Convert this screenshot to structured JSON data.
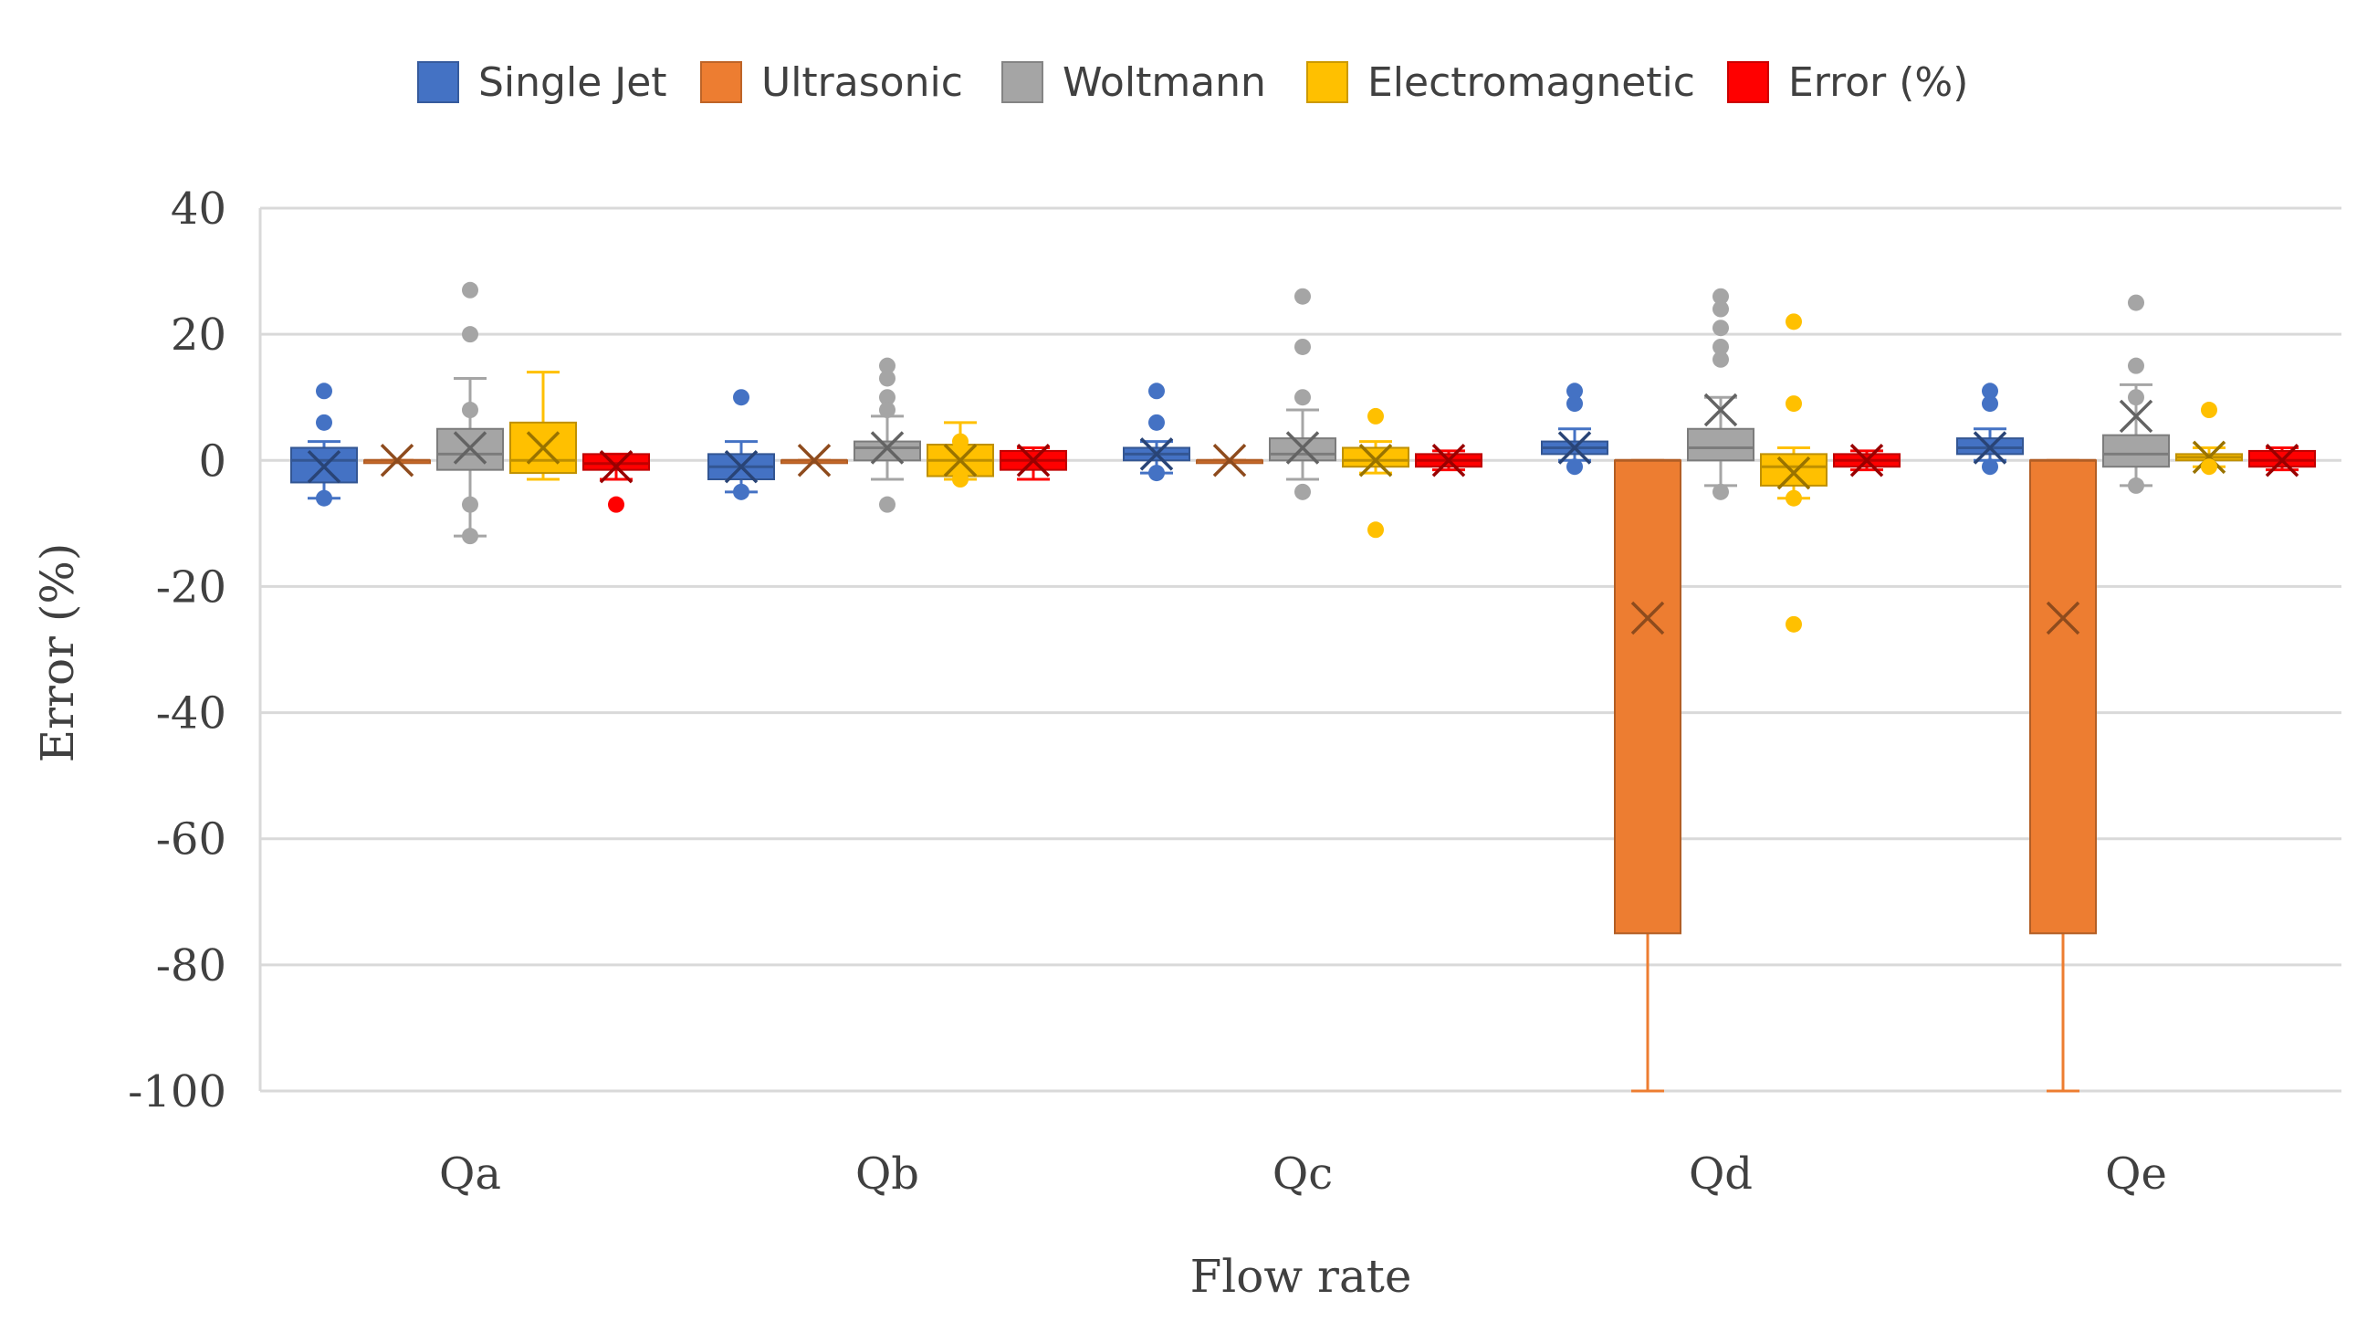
{
  "chart_data": {
    "type": "box",
    "title": "",
    "xlabel": "Flow rate",
    "ylabel": "Error (%)",
    "ylim": [
      -100,
      40
    ],
    "yticks": [
      40,
      20,
      0,
      -20,
      -40,
      -60,
      -80,
      -100
    ],
    "ytick_labels": [
      "40",
      "20",
      "0",
      "-20",
      "-40",
      "-60",
      "-80",
      "-100"
    ],
    "grid": true,
    "legend_position": "top",
    "categories": [
      "Qa",
      "Qb",
      "Qc",
      "Qd",
      "Qe"
    ],
    "series": [
      {
        "name": "Single Jet",
        "color": "#4472C4",
        "boxes": [
          {
            "q1": -3.5,
            "median": 0,
            "q3": 2,
            "whisker_low": -6,
            "whisker_high": 3,
            "mean": -1,
            "outliers": [
              11,
              6,
              -6
            ]
          },
          {
            "q1": -3,
            "median": -1,
            "q3": 1,
            "whisker_low": -5,
            "whisker_high": 3,
            "mean": -1,
            "outliers": [
              10,
              -5
            ]
          },
          {
            "q1": 0,
            "median": 1,
            "q3": 2,
            "whisker_low": -2,
            "whisker_high": 3,
            "mean": 1,
            "outliers": [
              11,
              6,
              -2
            ]
          },
          {
            "q1": 1,
            "median": 2,
            "q3": 3,
            "whisker_low": 0,
            "whisker_high": 5,
            "mean": 2,
            "outliers": [
              11,
              9,
              -1
            ]
          },
          {
            "q1": 1,
            "median": 2,
            "q3": 3.5,
            "whisker_low": 0,
            "whisker_high": 5,
            "mean": 2,
            "outliers": [
              11,
              9,
              -1
            ]
          }
        ]
      },
      {
        "name": "Ultrasonic",
        "color": "#ED7D31",
        "boxes": [
          {
            "q1": 0,
            "median": 0,
            "q3": 0,
            "whisker_low": 0,
            "whisker_high": 0,
            "mean": 0,
            "outliers": []
          },
          {
            "q1": 0,
            "median": 0,
            "q3": 0,
            "whisker_low": 0,
            "whisker_high": 0,
            "mean": 0,
            "outliers": []
          },
          {
            "q1": 0,
            "median": 0,
            "q3": 0,
            "whisker_low": 0,
            "whisker_high": 0,
            "mean": 0,
            "outliers": []
          },
          {
            "q1": -75,
            "median": 0,
            "q3": 0,
            "whisker_low": -100,
            "whisker_high": 0,
            "mean": -25,
            "outliers": []
          },
          {
            "q1": -75,
            "median": 0,
            "q3": 0,
            "whisker_low": -100,
            "whisker_high": 0,
            "mean": -25,
            "outliers": []
          }
        ]
      },
      {
        "name": "Woltmann",
        "color": "#A5A5A5",
        "boxes": [
          {
            "q1": -1.5,
            "median": 1,
            "q3": 5,
            "whisker_low": -12,
            "whisker_high": 13,
            "mean": 2,
            "outliers": [
              27,
              20,
              8,
              -7,
              -12
            ]
          },
          {
            "q1": 0,
            "median": 2,
            "q3": 3,
            "whisker_low": -3,
            "whisker_high": 7,
            "mean": 2,
            "outliers": [
              15,
              13,
              10,
              8,
              -7
            ]
          },
          {
            "q1": 0,
            "median": 1,
            "q3": 3.5,
            "whisker_low": -3,
            "whisker_high": 8,
            "mean": 2,
            "outliers": [
              26,
              18,
              10,
              -5
            ]
          },
          {
            "q1": 0,
            "median": 2,
            "q3": 5,
            "whisker_low": -4,
            "whisker_high": 10,
            "mean": 8,
            "outliers": [
              26,
              24,
              21,
              18,
              16,
              -5
            ]
          },
          {
            "q1": -1,
            "median": 1,
            "q3": 4,
            "whisker_low": -4,
            "whisker_high": 12,
            "mean": 7,
            "outliers": [
              25,
              15,
              10,
              -4
            ]
          }
        ]
      },
      {
        "name": "Electromagnetic",
        "color": "#FFC000",
        "boxes": [
          {
            "q1": -2,
            "median": 0,
            "q3": 6,
            "whisker_low": -3,
            "whisker_high": 14,
            "mean": 2,
            "outliers": []
          },
          {
            "q1": -2.5,
            "median": 0,
            "q3": 2.5,
            "whisker_low": -3,
            "whisker_high": 6,
            "mean": 0,
            "outliers": [
              3,
              -3
            ]
          },
          {
            "q1": -1,
            "median": 0,
            "q3": 2,
            "whisker_low": -2,
            "whisker_high": 3,
            "mean": 0,
            "outliers": [
              7,
              -11
            ]
          },
          {
            "q1": -4,
            "median": -1,
            "q3": 1,
            "whisker_low": -6,
            "whisker_high": 2,
            "mean": -2,
            "outliers": [
              22,
              9,
              -6,
              -26
            ]
          },
          {
            "q1": 0,
            "median": 0.5,
            "q3": 1,
            "whisker_low": -1,
            "whisker_high": 2,
            "mean": 0.5,
            "outliers": [
              8,
              -1
            ]
          }
        ]
      },
      {
        "name": "Error (%)",
        "color": "#FF0000",
        "boxes": [
          {
            "q1": -1.5,
            "median": -0.5,
            "q3": 1,
            "whisker_low": -3,
            "whisker_high": 1,
            "mean": -1,
            "outliers": [
              -7
            ]
          },
          {
            "q1": -1.5,
            "median": 0,
            "q3": 1.5,
            "whisker_low": -3,
            "whisker_high": 2,
            "mean": 0,
            "outliers": []
          },
          {
            "q1": -1,
            "median": 0,
            "q3": 1,
            "whisker_low": -1.5,
            "whisker_high": 1.5,
            "mean": 0,
            "outliers": []
          },
          {
            "q1": -1,
            "median": 0,
            "q3": 1,
            "whisker_low": -1.5,
            "whisker_high": 1.5,
            "mean": 0,
            "outliers": []
          },
          {
            "q1": -1,
            "median": 0,
            "q3": 1.5,
            "whisker_low": -1.5,
            "whisker_high": 2,
            "mean": 0,
            "outliers": []
          }
        ]
      }
    ]
  }
}
